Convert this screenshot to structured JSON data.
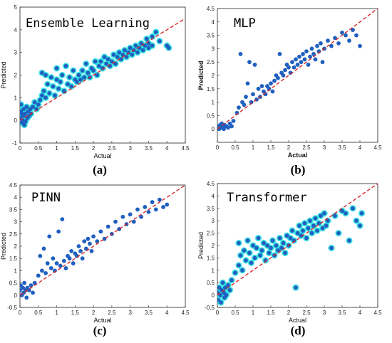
{
  "colors": {
    "point": "#1f5fbf",
    "halo": "#22e0e0",
    "diagonal": "#d62728",
    "axis": "#222222"
  },
  "chart_data": [
    {
      "type": "scatter",
      "title": "Ensemble Learning",
      "panel_label": "(a)",
      "xlabel": "Actual",
      "ylabel": "Predicted",
      "xlim": [
        0,
        4.5
      ],
      "ylim": [
        -1,
        5
      ],
      "xticks": [
        "0",
        "0.5",
        "1",
        "1.5",
        "2",
        "2.5",
        "3",
        "3.5",
        "4",
        "4.5"
      ],
      "yticks": [
        "-1",
        "0",
        "1",
        "2",
        "3",
        "4",
        "5"
      ],
      "diagonal": [
        [
          0,
          0
        ],
        [
          4.5,
          4.5
        ]
      ],
      "halo": true,
      "points": [
        [
          0.0,
          0.1
        ],
        [
          0.02,
          0.4
        ],
        [
          0.05,
          -0.1
        ],
        [
          0.05,
          0.3
        ],
        [
          0.08,
          0.0
        ],
        [
          0.1,
          0.5
        ],
        [
          0.1,
          0.2
        ],
        [
          0.12,
          -0.2
        ],
        [
          0.15,
          0.3
        ],
        [
          0.18,
          0.6
        ],
        [
          0.2,
          0.1
        ],
        [
          0.22,
          0.4
        ],
        [
          0.25,
          0.2
        ],
        [
          0.28,
          0.5
        ],
        [
          0.3,
          0.3
        ],
        [
          0.03,
          0.7
        ],
        [
          0.07,
          0.2
        ],
        [
          0.15,
          -0.05
        ],
        [
          0.35,
          0.6
        ],
        [
          0.4,
          0.8
        ],
        [
          0.45,
          0.5
        ],
        [
          0.5,
          0.7
        ],
        [
          0.55,
          0.9
        ],
        [
          0.6,
          1.1
        ],
        [
          0.6,
          2.1
        ],
        [
          0.65,
          1.3
        ],
        [
          0.7,
          1.0
        ],
        [
          0.7,
          2.0
        ],
        [
          0.75,
          1.6
        ],
        [
          0.8,
          1.2
        ],
        [
          0.85,
          1.9
        ],
        [
          0.9,
          1.5
        ],
        [
          0.95,
          1.1
        ],
        [
          1.0,
          1.8
        ],
        [
          1.0,
          2.3
        ],
        [
          1.05,
          1.4
        ],
        [
          1.1,
          1.7
        ],
        [
          1.15,
          2.0
        ],
        [
          1.2,
          1.3
        ],
        [
          1.25,
          2.4
        ],
        [
          1.3,
          1.6
        ],
        [
          1.35,
          1.9
        ],
        [
          1.4,
          1.5
        ],
        [
          1.45,
          2.2
        ],
        [
          1.5,
          1.8
        ],
        [
          1.55,
          1.7
        ],
        [
          1.6,
          2.0
        ],
        [
          1.65,
          1.8
        ],
        [
          1.7,
          2.2
        ],
        [
          1.75,
          1.9
        ],
        [
          1.8,
          2.5
        ],
        [
          1.85,
          2.1
        ],
        [
          1.9,
          1.9
        ],
        [
          1.95,
          2.3
        ],
        [
          2.0,
          2.2
        ],
        [
          2.05,
          2.6
        ],
        [
          2.1,
          2.0
        ],
        [
          2.15,
          2.4
        ],
        [
          2.2,
          2.6
        ],
        [
          2.25,
          2.3
        ],
        [
          2.3,
          2.8
        ],
        [
          2.35,
          2.5
        ],
        [
          2.4,
          2.7
        ],
        [
          2.45,
          2.4
        ],
        [
          2.5,
          2.6
        ],
        [
          2.55,
          2.9
        ],
        [
          2.6,
          2.5
        ],
        [
          2.65,
          2.8
        ],
        [
          2.7,
          3.0
        ],
        [
          2.75,
          2.7
        ],
        [
          2.8,
          2.9
        ],
        [
          2.85,
          3.1
        ],
        [
          2.9,
          2.8
        ],
        [
          2.95,
          3.0
        ],
        [
          3.0,
          3.2
        ],
        [
          3.05,
          2.9
        ],
        [
          3.1,
          3.1
        ],
        [
          3.15,
          3.3
        ],
        [
          3.2,
          3.0
        ],
        [
          3.25,
          3.2
        ],
        [
          3.3,
          3.4
        ],
        [
          3.35,
          3.1
        ],
        [
          3.4,
          3.3
        ],
        [
          3.45,
          3.6
        ],
        [
          3.5,
          3.4
        ],
        [
          3.5,
          3.2
        ],
        [
          3.6,
          3.7
        ],
        [
          3.6,
          3.3
        ],
        [
          3.7,
          3.9
        ],
        [
          3.8,
          3.5
        ],
        [
          4.0,
          3.3
        ],
        [
          4.05,
          3.2
        ]
      ]
    },
    {
      "type": "scatter",
      "title": "MLP",
      "panel_label": "(b)",
      "xlabel": "Actual",
      "ylabel": "Predicted",
      "xlim": [
        0,
        4.5
      ],
      "ylim": [
        -0.5,
        4.5
      ],
      "xticks": [
        "0",
        "0.5",
        "1",
        "1.5",
        "2",
        "2.5",
        "3",
        "3.5",
        "4",
        "4.5"
      ],
      "yticks": [
        "0",
        "0.5",
        "1",
        "1.5",
        "2",
        "2.5",
        "3",
        "3.5",
        "4",
        "4.5"
      ],
      "diagonal": [
        [
          0,
          0
        ],
        [
          4.5,
          4.5
        ]
      ],
      "halo": false,
      "points": [
        [
          0.0,
          0.05
        ],
        [
          0.02,
          0.1
        ],
        [
          0.05,
          0.0
        ],
        [
          0.08,
          0.15
        ],
        [
          0.1,
          0.05
        ],
        [
          0.12,
          0.2
        ],
        [
          0.15,
          0.1
        ],
        [
          0.18,
          0.0
        ],
        [
          0.2,
          0.15
        ],
        [
          0.25,
          0.1
        ],
        [
          0.3,
          0.05
        ],
        [
          0.35,
          0.2
        ],
        [
          0.4,
          0.1
        ],
        [
          0.45,
          0.3
        ],
        [
          0.55,
          0.6
        ],
        [
          0.6,
          0.8
        ],
        [
          0.65,
          2.8
        ],
        [
          0.7,
          1.0
        ],
        [
          0.75,
          0.9
        ],
        [
          0.8,
          1.2
        ],
        [
          0.85,
          1.7
        ],
        [
          0.9,
          2.5
        ],
        [
          0.95,
          1.0
        ],
        [
          1.0,
          1.3
        ],
        [
          1.05,
          2.4
        ],
        [
          1.1,
          1.1
        ],
        [
          1.15,
          1.5
        ],
        [
          1.2,
          1.2
        ],
        [
          1.25,
          1.6
        ],
        [
          1.3,
          1.4
        ],
        [
          1.35,
          1.3
        ],
        [
          1.4,
          1.6
        ],
        [
          1.45,
          1.5
        ],
        [
          1.5,
          1.7
        ],
        [
          1.55,
          1.4
        ],
        [
          1.6,
          1.8
        ],
        [
          1.65,
          2.0
        ],
        [
          1.7,
          1.9
        ],
        [
          1.75,
          2.8
        ],
        [
          1.8,
          2.1
        ],
        [
          1.85,
          2.0
        ],
        [
          1.9,
          2.2
        ],
        [
          1.95,
          2.4
        ],
        [
          2.0,
          2.3
        ],
        [
          2.05,
          2.1
        ],
        [
          2.1,
          2.5
        ],
        [
          2.15,
          2.3
        ],
        [
          2.2,
          2.6
        ],
        [
          2.25,
          2.4
        ],
        [
          2.3,
          2.7
        ],
        [
          2.35,
          2.5
        ],
        [
          2.4,
          2.8
        ],
        [
          2.45,
          2.6
        ],
        [
          2.5,
          2.9
        ],
        [
          2.55,
          2.4
        ],
        [
          2.6,
          2.7
        ],
        [
          2.65,
          3.0
        ],
        [
          2.7,
          2.8
        ],
        [
          2.75,
          2.6
        ],
        [
          2.8,
          3.1
        ],
        [
          2.85,
          2.9
        ],
        [
          2.9,
          3.2
        ],
        [
          2.95,
          2.5
        ],
        [
          3.0,
          3.0
        ],
        [
          3.1,
          3.3
        ],
        [
          3.2,
          3.1
        ],
        [
          3.3,
          3.4
        ],
        [
          3.4,
          3.2
        ],
        [
          3.5,
          3.6
        ],
        [
          3.6,
          3.5
        ],
        [
          3.7,
          3.3
        ],
        [
          3.8,
          3.7
        ],
        [
          3.9,
          3.5
        ],
        [
          4.0,
          3.1
        ]
      ]
    },
    {
      "type": "scatter",
      "title": "PINN",
      "panel_label": "(c)",
      "xlabel": "Actual",
      "ylabel": "Predicted",
      "xlim": [
        0,
        4.5
      ],
      "ylim": [
        -0.5,
        4.5
      ],
      "xticks": [
        "0",
        "0.5",
        "1",
        "1.5",
        "2",
        "2.5",
        "3",
        "3.5",
        "4",
        "4.5"
      ],
      "yticks": [
        "-0.5",
        "0",
        "0.5",
        "1",
        "1.5",
        "2",
        "2.5",
        "3",
        "3.5",
        "4",
        "4.5"
      ],
      "diagonal": [
        [
          0,
          0
        ],
        [
          4.5,
          4.5
        ]
      ],
      "halo": false,
      "points": [
        [
          0.0,
          0.2
        ],
        [
          0.02,
          0.4
        ],
        [
          0.05,
          0.0
        ],
        [
          0.08,
          0.3
        ],
        [
          0.1,
          0.1
        ],
        [
          0.12,
          0.5
        ],
        [
          0.15,
          0.2
        ],
        [
          0.18,
          -0.1
        ],
        [
          0.2,
          0.3
        ],
        [
          0.25,
          0.2
        ],
        [
          0.3,
          0.4
        ],
        [
          0.35,
          0.1
        ],
        [
          0.4,
          0.5
        ],
        [
          0.5,
          0.8
        ],
        [
          0.55,
          1.6
        ],
        [
          0.6,
          1.0
        ],
        [
          0.65,
          1.9
        ],
        [
          0.7,
          0.9
        ],
        [
          0.75,
          1.3
        ],
        [
          0.8,
          2.4
        ],
        [
          0.85,
          1.1
        ],
        [
          0.9,
          1.5
        ],
        [
          0.95,
          1.0
        ],
        [
          1.0,
          1.3
        ],
        [
          1.05,
          2.6
        ],
        [
          1.1,
          1.2
        ],
        [
          1.15,
          3.1
        ],
        [
          1.2,
          1.4
        ],
        [
          1.25,
          1.1
        ],
        [
          1.3,
          1.6
        ],
        [
          1.35,
          1.5
        ],
        [
          1.4,
          1.8
        ],
        [
          1.45,
          1.3
        ],
        [
          1.5,
          1.7
        ],
        [
          1.55,
          1.6
        ],
        [
          1.6,
          2.0
        ],
        [
          1.65,
          1.8
        ],
        [
          1.7,
          1.5
        ],
        [
          1.75,
          2.2
        ],
        [
          1.8,
          1.9
        ],
        [
          1.85,
          2.3
        ],
        [
          1.9,
          2.1
        ],
        [
          1.95,
          1.8
        ],
        [
          2.0,
          2.4
        ],
        [
          2.1,
          2.2
        ],
        [
          2.2,
          2.6
        ],
        [
          2.3,
          2.3
        ],
        [
          2.4,
          2.8
        ],
        [
          2.5,
          2.5
        ],
        [
          2.6,
          3.0
        ],
        [
          2.7,
          2.7
        ],
        [
          2.8,
          3.2
        ],
        [
          2.9,
          2.9
        ],
        [
          3.0,
          3.3
        ],
        [
          3.1,
          3.0
        ],
        [
          3.2,
          3.5
        ],
        [
          3.3,
          3.2
        ],
        [
          3.4,
          3.6
        ],
        [
          3.5,
          3.4
        ],
        [
          3.6,
          3.8
        ],
        [
          3.7,
          3.5
        ],
        [
          3.8,
          3.9
        ],
        [
          3.9,
          3.6
        ],
        [
          4.0,
          3.7
        ]
      ]
    },
    {
      "type": "scatter",
      "title": "Transformer",
      "panel_label": "(d)",
      "xlabel": "Actual",
      "ylabel": "Predicted",
      "xlim": [
        0,
        4.5
      ],
      "ylim": [
        -0.5,
        4.5
      ],
      "xticks": [
        "0",
        "0.5",
        "1",
        "1.5",
        "2",
        "2.5",
        "3",
        "3.5",
        "4",
        "4.5"
      ],
      "yticks": [
        "-0.5",
        "0",
        "0.5",
        "1",
        "1.5",
        "2",
        "2.5",
        "3",
        "3.5",
        "4",
        "4.5"
      ],
      "diagonal": [
        [
          0,
          0
        ],
        [
          4.5,
          4.5
        ]
      ],
      "halo": true,
      "points": [
        [
          0.0,
          0.1
        ],
        [
          0.02,
          -0.2
        ],
        [
          0.05,
          0.3
        ],
        [
          0.08,
          0.0
        ],
        [
          0.1,
          -0.3
        ],
        [
          0.12,
          0.2
        ],
        [
          0.15,
          0.5
        ],
        [
          0.18,
          0.1
        ],
        [
          0.2,
          -0.1
        ],
        [
          0.22,
          0.3
        ],
        [
          0.25,
          0.0
        ],
        [
          0.3,
          0.4
        ],
        [
          0.35,
          0.2
        ],
        [
          0.4,
          0.6
        ],
        [
          0.5,
          0.9
        ],
        [
          0.6,
          1.2
        ],
        [
          0.6,
          2.1
        ],
        [
          0.65,
          1.6
        ],
        [
          0.7,
          1.0
        ],
        [
          0.75,
          1.8
        ],
        [
          0.8,
          1.4
        ],
        [
          0.85,
          2.2
        ],
        [
          0.9,
          1.7
        ],
        [
          0.95,
          1.3
        ],
        [
          1.0,
          2.0
        ],
        [
          1.05,
          1.5
        ],
        [
          1.1,
          1.9
        ],
        [
          1.15,
          2.3
        ],
        [
          1.2,
          1.6
        ],
        [
          1.25,
          1.8
        ],
        [
          1.3,
          2.1
        ],
        [
          1.35,
          1.4
        ],
        [
          1.4,
          2.0
        ],
        [
          1.45,
          1.7
        ],
        [
          1.5,
          1.9
        ],
        [
          1.55,
          2.2
        ],
        [
          1.6,
          1.6
        ],
        [
          1.65,
          2.0
        ],
        [
          1.7,
          1.8
        ],
        [
          1.75,
          2.3
        ],
        [
          1.8,
          1.9
        ],
        [
          1.85,
          2.1
        ],
        [
          1.9,
          1.7
        ],
        [
          1.95,
          2.4
        ],
        [
          2.0,
          2.0
        ],
        [
          2.05,
          2.3
        ],
        [
          2.1,
          2.6
        ],
        [
          2.15,
          2.2
        ],
        [
          2.2,
          0.3
        ],
        [
          2.25,
          2.5
        ],
        [
          2.3,
          2.8
        ],
        [
          2.35,
          2.4
        ],
        [
          2.4,
          2.6
        ],
        [
          2.45,
          2.9
        ],
        [
          2.5,
          2.3
        ],
        [
          2.55,
          2.7
        ],
        [
          2.6,
          3.0
        ],
        [
          2.65,
          2.5
        ],
        [
          2.7,
          2.8
        ],
        [
          2.75,
          3.1
        ],
        [
          2.8,
          2.6
        ],
        [
          2.85,
          2.9
        ],
        [
          2.9,
          3.2
        ],
        [
          2.95,
          2.7
        ],
        [
          3.0,
          3.3
        ],
        [
          3.05,
          2.8
        ],
        [
          3.1,
          3.0
        ],
        [
          3.2,
          1.9
        ],
        [
          3.3,
          3.2
        ],
        [
          3.4,
          2.5
        ],
        [
          3.5,
          3.4
        ],
        [
          3.6,
          3.3
        ],
        [
          3.7,
          2.2
        ],
        [
          3.8,
          3.5
        ],
        [
          3.9,
          3.0
        ],
        [
          4.0,
          2.8
        ],
        [
          4.05,
          3.3
        ]
      ]
    }
  ]
}
